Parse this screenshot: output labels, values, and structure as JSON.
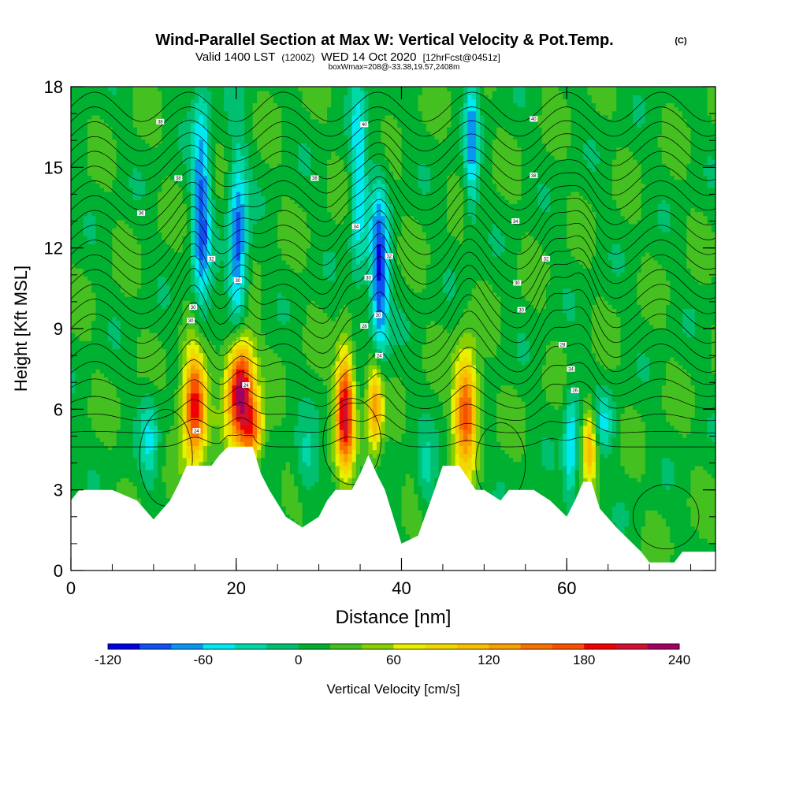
{
  "header": {
    "title": "Wind-Parallel Section at Max W: Vertical Velocity & Pot.Temp.",
    "title_tag": "(C)",
    "subtitle_main": "Valid 1400 LST",
    "subtitle_zulu": "(1200Z)",
    "subtitle_date": "WED 14 Oct 2020",
    "subtitle_fcst": "[12hrFcst@0451z]",
    "subtitle_box": "boxWmax=208@-33.38,19.57,2408m"
  },
  "chart_data": {
    "type": "heatmap",
    "title": "Wind-Parallel Section at Max W: Vertical Velocity & Pot.Temp.",
    "xlabel": "Distance [nm]",
    "ylabel": "Height [Kft MSL]",
    "xlim": [
      0,
      78
    ],
    "ylim": [
      0,
      18
    ],
    "x_ticks": [
      0,
      20,
      40,
      60
    ],
    "x_tick_labels": [
      "0",
      "20",
      "40",
      "60"
    ],
    "y_ticks": [
      0,
      3,
      6,
      9,
      12,
      15,
      18
    ],
    "y_tick_labels": [
      "0",
      "3",
      "6",
      "9",
      "12",
      "15",
      "18"
    ],
    "colorbar": {
      "label": "Vertical Velocity [cm/s]",
      "min": -120,
      "max": 240,
      "step": 20,
      "tick_labels": [
        "-120",
        "-60",
        "0",
        "60",
        "120",
        "180",
        "240"
      ],
      "colors": [
        "#0000e0",
        "#1050f0",
        "#0a96f0",
        "#00e8f0",
        "#00d8a8",
        "#00c070",
        "#00b030",
        "#44c020",
        "#88d000",
        "#e8f000",
        "#f0d800",
        "#f8c000",
        "#f8a000",
        "#f87000",
        "#f85000",
        "#f00000",
        "#d01030",
        "#a00060"
      ]
    },
    "terrain_kft": [
      [
        0,
        2.6
      ],
      [
        1,
        3.0
      ],
      [
        5,
        3.0
      ],
      [
        8,
        2.6
      ],
      [
        10,
        1.9
      ],
      [
        12,
        2.6
      ],
      [
        13,
        3.2
      ],
      [
        14,
        3.9
      ],
      [
        17,
        3.9
      ],
      [
        18,
        4.3
      ],
      [
        19,
        4.6
      ],
      [
        22,
        4.6
      ],
      [
        23,
        3.6
      ],
      [
        24,
        3.0
      ],
      [
        26,
        2.0
      ],
      [
        28,
        1.6
      ],
      [
        30,
        2.0
      ],
      [
        31,
        2.6
      ],
      [
        32,
        3.0
      ],
      [
        34,
        3.0
      ],
      [
        35,
        3.6
      ],
      [
        36,
        4.3
      ],
      [
        37,
        3.6
      ],
      [
        38,
        3.0
      ],
      [
        39,
        2.0
      ],
      [
        40,
        1.0
      ],
      [
        42,
        1.3
      ],
      [
        44,
        3.0
      ],
      [
        45,
        3.9
      ],
      [
        47,
        3.9
      ],
      [
        49,
        3.0
      ],
      [
        50,
        3.0
      ],
      [
        52,
        2.6
      ],
      [
        53,
        3.0
      ],
      [
        56,
        3.0
      ],
      [
        58,
        2.6
      ],
      [
        60,
        2.0
      ],
      [
        61,
        2.6
      ],
      [
        62,
        3.3
      ],
      [
        63,
        3.3
      ],
      [
        64,
        2.3
      ],
      [
        66,
        1.6
      ],
      [
        68,
        1.0
      ],
      [
        69,
        0.7
      ],
      [
        70,
        0.3
      ],
      [
        73,
        0.3
      ],
      [
        74,
        0.7
      ],
      [
        78,
        0.7
      ]
    ],
    "features": [
      {
        "x": 15.0,
        "z": 6.2,
        "w": 200,
        "sx": 1.0,
        "sz": 1.4
      },
      {
        "x": 20.5,
        "z": 6.8,
        "w": 230,
        "sx": 1.1,
        "sz": 1.4
      },
      {
        "x": 22.0,
        "z": 5.2,
        "w": 120,
        "sx": 0.9,
        "sz": 0.8
      },
      {
        "x": 33.2,
        "z": 6.0,
        "w": 200,
        "sx": 0.8,
        "sz": 1.5
      },
      {
        "x": 36.8,
        "z": 6.2,
        "w": 130,
        "sx": 0.7,
        "sz": 1.3
      },
      {
        "x": 47.8,
        "z": 6.0,
        "w": 160,
        "sx": 1.0,
        "sz": 1.5
      },
      {
        "x": 62.8,
        "z": 4.8,
        "w": 110,
        "sx": 0.6,
        "sz": 1.0
      },
      {
        "x": 15.8,
        "z": 13.5,
        "w": -100,
        "sx": 0.8,
        "sz": 3.2
      },
      {
        "x": 20.2,
        "z": 12.0,
        "w": -110,
        "sx": 0.8,
        "sz": 2.5
      },
      {
        "x": 37.3,
        "z": 10.8,
        "w": -120,
        "sx": 0.8,
        "sz": 2.4
      },
      {
        "x": 34.8,
        "z": 14.5,
        "w": -70,
        "sx": 0.7,
        "sz": 3.0
      },
      {
        "x": 48.5,
        "z": 16.0,
        "w": -80,
        "sx": 0.6,
        "sz": 2.0
      },
      {
        "x": 60.5,
        "z": 4.6,
        "w": -80,
        "sx": 0.6,
        "sz": 1.5
      },
      {
        "x": 64.5,
        "z": 5.5,
        "w": -50,
        "sx": 1.0,
        "sz": 0.8
      },
      {
        "x": 9.5,
        "z": 5.0,
        "w": -50,
        "sx": 0.8,
        "sz": 1.2
      },
      {
        "x": 43.0,
        "z": 3.5,
        "w": -40,
        "sx": 0.8,
        "sz": 1.0
      },
      {
        "x": 28.5,
        "z": 4.0,
        "w": -40,
        "sx": 1.0,
        "sz": 1.0
      }
    ],
    "contour_labels": [
      {
        "text": "38",
        "x": 10.8,
        "z": 16.7
      },
      {
        "text": "38",
        "x": 13.0,
        "z": 14.6
      },
      {
        "text": "36",
        "x": 8.5,
        "z": 13.3
      },
      {
        "text": "32",
        "x": 17.0,
        "z": 11.6
      },
      {
        "text": "30",
        "x": 14.8,
        "z": 9.8
      },
      {
        "text": "30",
        "x": 14.5,
        "z": 9.3
      },
      {
        "text": "30",
        "x": 20.2,
        "z": 10.8
      },
      {
        "text": "24",
        "x": 21.2,
        "z": 6.9
      },
      {
        "text": "24",
        "x": 15.2,
        "z": 5.2
      },
      {
        "text": "40",
        "x": 35.5,
        "z": 16.6
      },
      {
        "text": "38",
        "x": 29.5,
        "z": 14.6
      },
      {
        "text": "34",
        "x": 34.5,
        "z": 12.8
      },
      {
        "text": "32",
        "x": 38.5,
        "z": 11.7
      },
      {
        "text": "30",
        "x": 36.0,
        "z": 10.9
      },
      {
        "text": "30",
        "x": 37.2,
        "z": 9.5
      },
      {
        "text": "28",
        "x": 35.5,
        "z": 9.1
      },
      {
        "text": "24",
        "x": 37.3,
        "z": 8.0
      },
      {
        "text": "40",
        "x": 56.0,
        "z": 16.8
      },
      {
        "text": "38",
        "x": 56.0,
        "z": 14.7
      },
      {
        "text": "34",
        "x": 53.8,
        "z": 13.0
      },
      {
        "text": "32",
        "x": 57.5,
        "z": 11.6
      },
      {
        "text": "30",
        "x": 54.0,
        "z": 10.7
      },
      {
        "text": "30",
        "x": 54.5,
        "z": 9.7
      },
      {
        "text": "28",
        "x": 59.5,
        "z": 8.4
      },
      {
        "text": "34",
        "x": 60.5,
        "z": 7.5
      },
      {
        "text": "26",
        "x": 61.0,
        "z": 6.7
      }
    ]
  }
}
